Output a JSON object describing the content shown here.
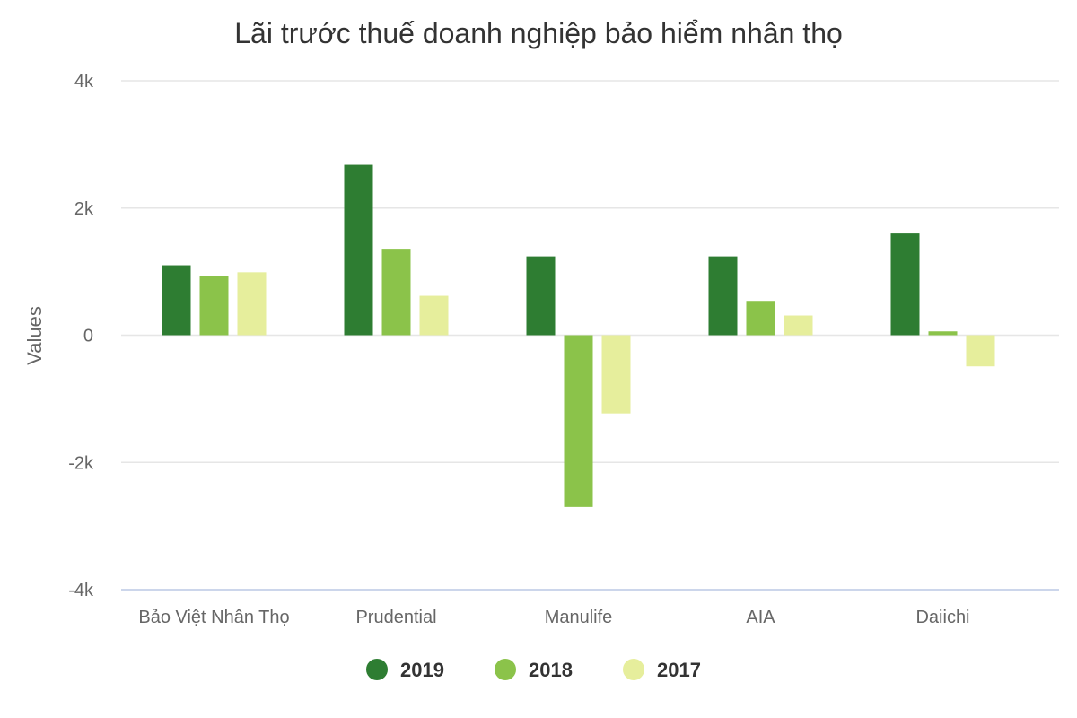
{
  "chart_data": {
    "type": "bar",
    "title": "Lãi trước thuế doanh nghiệp bảo hiểm nhân thọ",
    "xlabel": "",
    "ylabel": "Values",
    "categories": [
      "Bảo Việt Nhân Thọ",
      "Prudential",
      "Manulife",
      "AIA",
      "Daiichi"
    ],
    "series": [
      {
        "name": "2019",
        "color": "#2e7d32",
        "values": [
          1100,
          2680,
          1240,
          1240,
          1600
        ]
      },
      {
        "name": "2018",
        "color": "#8bc34a",
        "values": [
          930,
          1360,
          -2700,
          540,
          60
        ]
      },
      {
        "name": "2017",
        "color": "#e6ee9c",
        "values": [
          990,
          620,
          -1230,
          310,
          -490
        ]
      }
    ],
    "ylim": [
      -4000,
      4000
    ],
    "yticks": [
      4000,
      2000,
      0,
      -2000,
      -4000
    ],
    "ytick_labels": [
      "4k",
      "2k",
      "0",
      "-2k",
      "-4k"
    ],
    "grid": true,
    "legend_position": "bottom-center"
  }
}
